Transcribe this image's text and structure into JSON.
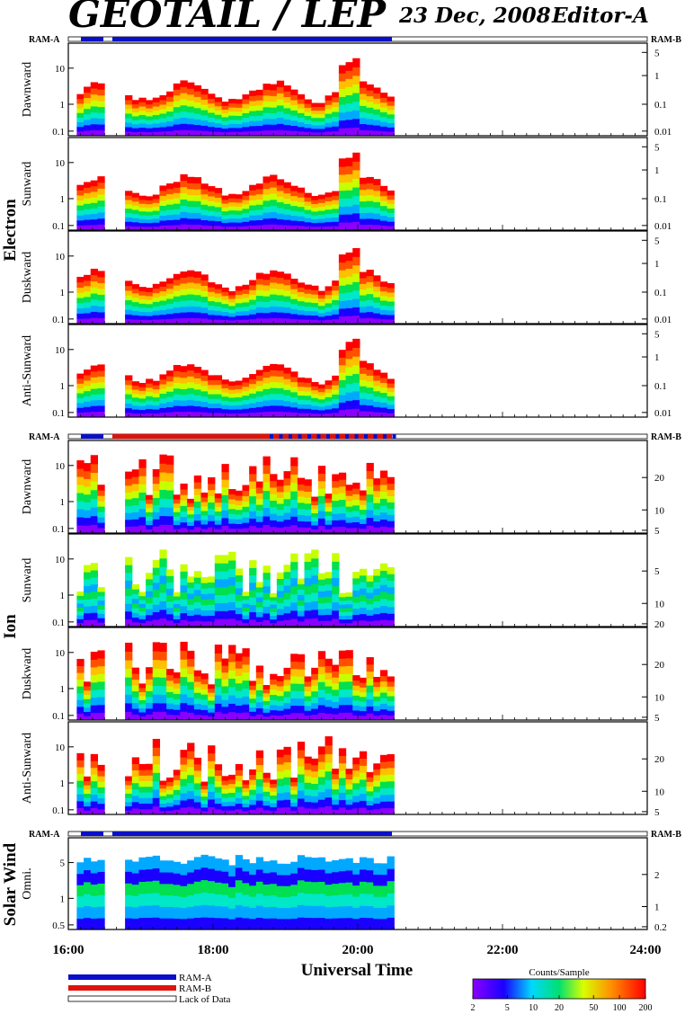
{
  "header": {
    "title": "GEOTAIL / LEP",
    "date": "23 Dec, 2008",
    "editor": "Editor-A"
  },
  "groups": [
    {
      "label": "Electron",
      "ram_left": "RAM-A",
      "ram_right": "RAM-B"
    },
    {
      "label": "Ion",
      "ram_left": "RAM-A",
      "ram_right": "RAM-B"
    },
    {
      "label": "Solar Wind",
      "ram_left": "RAM-A",
      "ram_right": "RAM-B"
    }
  ],
  "panels": [
    {
      "group": 0,
      "label": "Dawnward",
      "left_ticks": [
        "10",
        "1",
        "0.1"
      ],
      "right_ticks": [
        "5",
        "1",
        "0.1",
        "0.01"
      ]
    },
    {
      "group": 0,
      "label": "Sunward",
      "left_ticks": [
        "10",
        "1",
        "0.1"
      ],
      "right_ticks": [
        "5",
        "1",
        "0.1",
        "0.01"
      ]
    },
    {
      "group": 0,
      "label": "Duskward",
      "left_ticks": [
        "10",
        "1",
        "0.1"
      ],
      "right_ticks": [
        "5",
        "1",
        "0.1",
        "0.01"
      ]
    },
    {
      "group": 0,
      "label": "Anti-Sunward",
      "left_ticks": [
        "10",
        "1",
        "0.1"
      ],
      "right_ticks": [
        "5",
        "1",
        "0.1",
        "0.01"
      ]
    },
    {
      "group": 1,
      "label": "Dawnward",
      "left_ticks": [
        "10",
        "1",
        "0.1"
      ],
      "right_ticks": [
        "20",
        "10",
        "5"
      ]
    },
    {
      "group": 1,
      "label": "Sunward",
      "left_ticks": [
        "10",
        "1",
        "0.1"
      ],
      "right_ticks": [
        "5",
        "10",
        "20"
      ]
    },
    {
      "group": 1,
      "label": "Duskward",
      "left_ticks": [
        "10",
        "1",
        "0.1"
      ],
      "right_ticks": [
        "20",
        "10",
        "5"
      ]
    },
    {
      "group": 1,
      "label": "Anti-Sunward",
      "left_ticks": [
        "10",
        "1",
        "0.1"
      ],
      "right_ticks": [
        "20",
        "10",
        "5"
      ]
    },
    {
      "group": 2,
      "label": "Omni.",
      "left_ticks": [
        "5",
        "1",
        "0.5"
      ],
      "right_ticks": [
        "2",
        "1",
        "0.2"
      ]
    }
  ],
  "chart_data": {
    "type": "heatmap",
    "xlabel": "Universal Time",
    "x_ticks": [
      "16:00",
      "18:00",
      "20:00",
      "22:00",
      "24:00"
    ],
    "xlim": [
      "16:00",
      "24:00"
    ],
    "data_coverage": {
      "start": "16:07",
      "gap": [
        "16:36",
        "16:43"
      ],
      "end": "20:30"
    },
    "colorbar": {
      "title": "Counts/Sample",
      "ticks": [
        "2",
        "5",
        "10",
        "20",
        "50",
        "100",
        "200"
      ],
      "range": [
        2,
        200
      ],
      "scale": "log"
    },
    "legend": [
      {
        "label": "RAM-A",
        "color": "#0a10c8"
      },
      {
        "label": "RAM-B",
        "color": "#e0120c"
      },
      {
        "label": "Lack of Data",
        "color": "#ffffff"
      }
    ]
  }
}
